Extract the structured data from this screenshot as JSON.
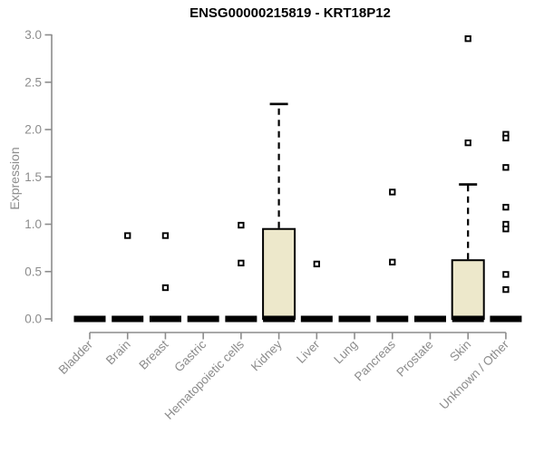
{
  "chart_data": {
    "type": "boxplot",
    "title": "ENSG00000215819 - KRT18P12",
    "xlabel": "",
    "ylabel": "Expression",
    "ylim": [
      0.0,
      3.0
    ],
    "yticks": [
      0.0,
      0.5,
      1.0,
      1.5,
      2.0,
      2.5,
      3.0
    ],
    "grid": false,
    "legend": "none",
    "categories": [
      "Bladder",
      "Brain",
      "Breast",
      "Gastric",
      "Hematopoietic cells",
      "Kidney",
      "Liver",
      "Lung",
      "Pancreas",
      "Prostate",
      "Skin",
      "Unknown / Other"
    ],
    "boxes": [
      {
        "category": "Bladder",
        "whisker_low": 0.0,
        "q1": 0.0,
        "median": 0.0,
        "q3": 0.0,
        "whisker_high": 0.0,
        "outliers": []
      },
      {
        "category": "Brain",
        "whisker_low": 0.0,
        "q1": 0.0,
        "median": 0.0,
        "q3": 0.0,
        "whisker_high": 0.0,
        "outliers": [
          0.88
        ]
      },
      {
        "category": "Breast",
        "whisker_low": 0.0,
        "q1": 0.0,
        "median": 0.0,
        "q3": 0.0,
        "whisker_high": 0.0,
        "outliers": [
          0.88,
          0.33
        ]
      },
      {
        "category": "Gastric",
        "whisker_low": 0.0,
        "q1": 0.0,
        "median": 0.0,
        "q3": 0.0,
        "whisker_high": 0.0,
        "outliers": []
      },
      {
        "category": "Hematopoietic cells",
        "whisker_low": 0.0,
        "q1": 0.0,
        "median": 0.0,
        "q3": 0.0,
        "whisker_high": 0.0,
        "outliers": [
          0.99,
          0.59
        ]
      },
      {
        "category": "Kidney",
        "whisker_low": 0.0,
        "q1": 0.0,
        "median": 0.0,
        "q3": 0.95,
        "whisker_high": 2.27,
        "outliers": []
      },
      {
        "category": "Liver",
        "whisker_low": 0.0,
        "q1": 0.0,
        "median": 0.0,
        "q3": 0.0,
        "whisker_high": 0.0,
        "outliers": [
          0.58
        ]
      },
      {
        "category": "Lung",
        "whisker_low": 0.0,
        "q1": 0.0,
        "median": 0.0,
        "q3": 0.0,
        "whisker_high": 0.0,
        "outliers": []
      },
      {
        "category": "Pancreas",
        "whisker_low": 0.0,
        "q1": 0.0,
        "median": 0.0,
        "q3": 0.0,
        "whisker_high": 0.0,
        "outliers": [
          1.34,
          0.6
        ]
      },
      {
        "category": "Prostate",
        "whisker_low": 0.0,
        "q1": 0.0,
        "median": 0.0,
        "q3": 0.0,
        "whisker_high": 0.0,
        "outliers": []
      },
      {
        "category": "Skin",
        "whisker_low": 0.0,
        "q1": 0.0,
        "median": 0.0,
        "q3": 0.62,
        "whisker_high": 1.42,
        "outliers": [
          2.96,
          1.86
        ]
      },
      {
        "category": "Unknown / Other",
        "whisker_low": 0.0,
        "q1": 0.0,
        "median": 0.0,
        "q3": 0.0,
        "whisker_high": 0.0,
        "outliers": [
          1.95,
          1.91,
          1.6,
          1.18,
          1.0,
          0.95,
          0.47,
          0.31
        ]
      }
    ],
    "colors": {
      "box_fill": "#EDE8CB",
      "box_stroke": "#000000",
      "median": "#000000",
      "outlier_stroke": "#000000",
      "outlier_fill": "#ffffff",
      "axis": "#8c8c8c",
      "tick_label": "#8c8c8c",
      "title": "#000000"
    }
  }
}
